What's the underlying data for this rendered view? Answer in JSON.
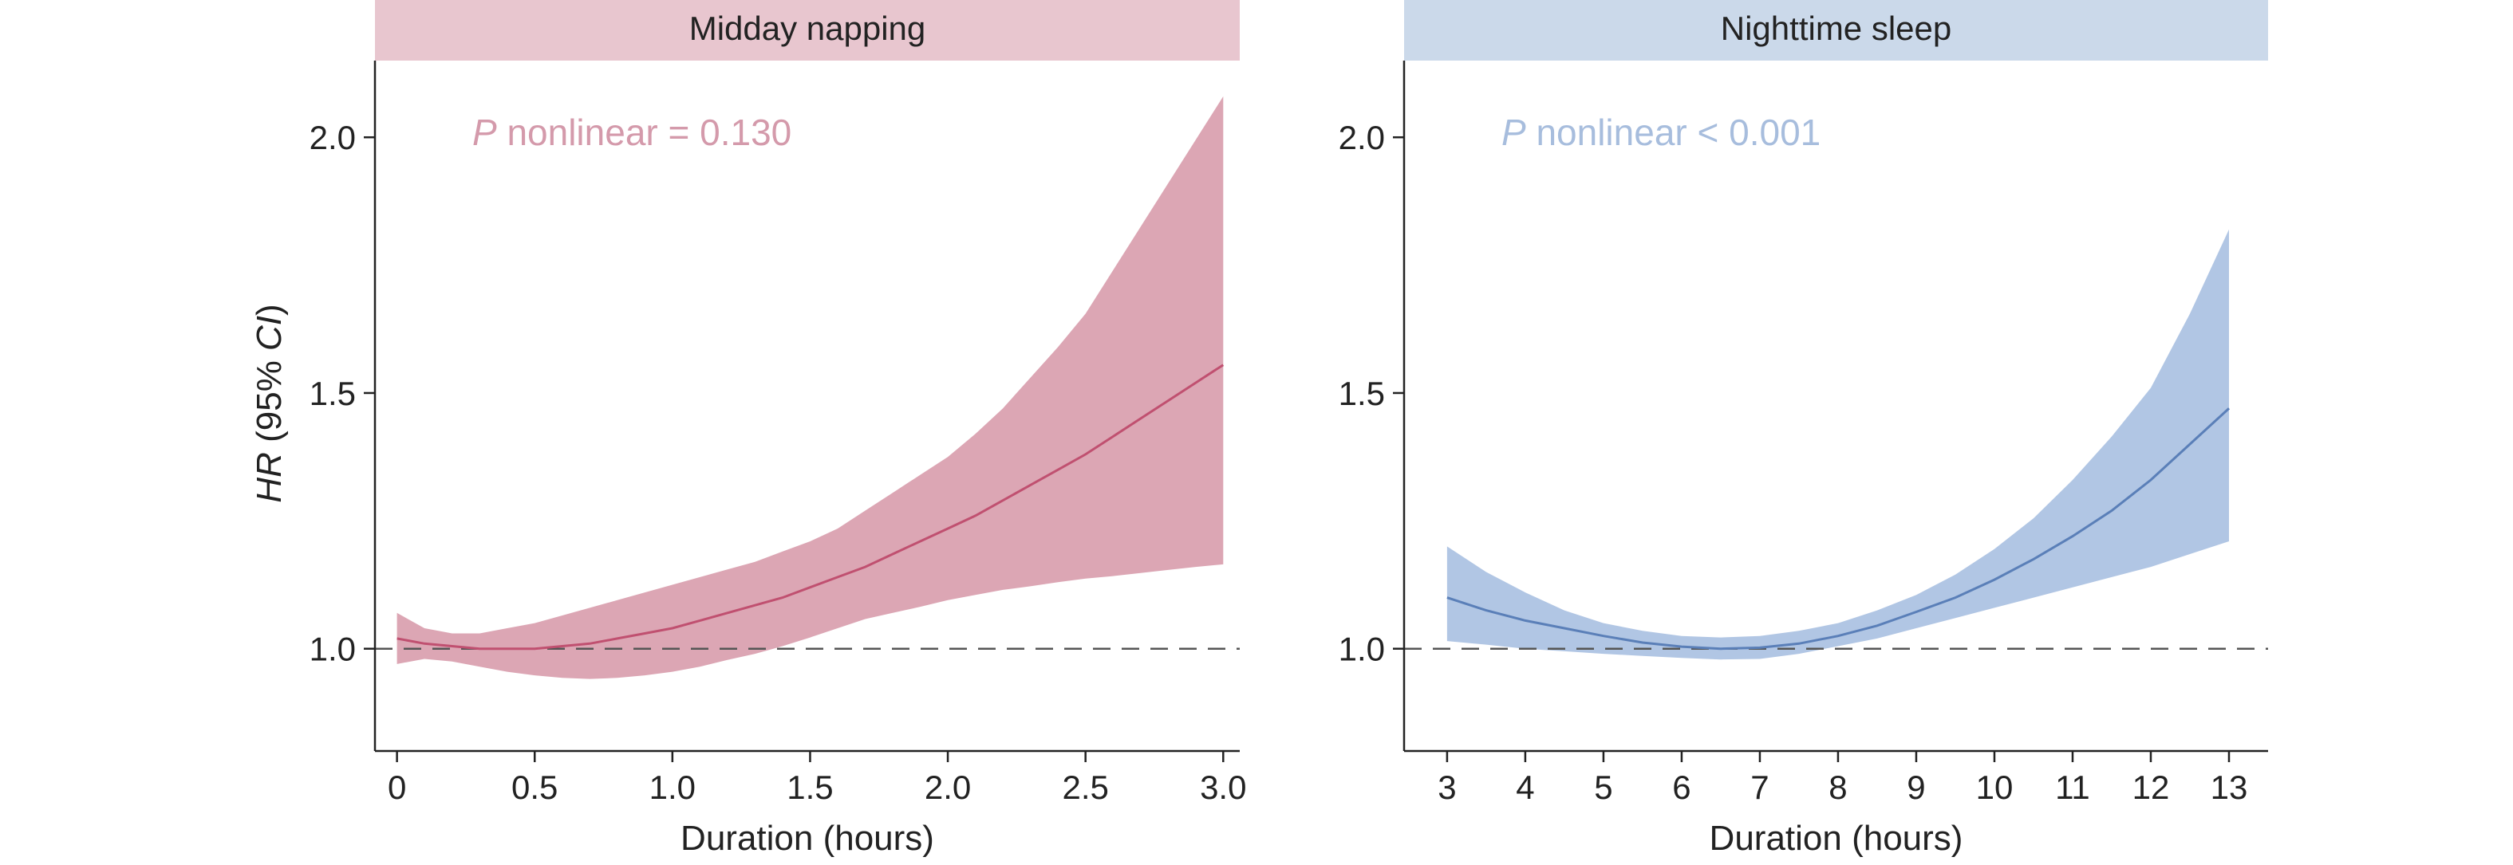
{
  "y_axis_title_prefix": "HR",
  "y_axis_title_paren_open": " (95% ",
  "y_axis_title_ci": "CI",
  "y_axis_title_paren_close": ")",
  "chart_data": [
    {
      "type": "line",
      "title": "Midday napping",
      "xlabel": "Duration (hours)",
      "ylabel": "HR (95% CI)",
      "xlim": [
        -0.08,
        3.06
      ],
      "ylim": [
        0.8,
        2.15
      ],
      "x_ticks": [
        0,
        0.5,
        1.0,
        1.5,
        2.0,
        2.5,
        3.0
      ],
      "x_tick_labels": [
        "0",
        "0.5",
        "1.0",
        "1.5",
        "2.0",
        "2.5",
        "3.0"
      ],
      "y_ticks": [
        1.0,
        1.5,
        2.0
      ],
      "y_tick_labels": [
        "1.0",
        "1.5",
        "2.0"
      ],
      "reference_line": 1.0,
      "annotation": {
        "p": "P",
        "text": " nonlinear = 0.130"
      },
      "strip_color": "#e8c6cf",
      "line_color": "#c05070",
      "band_color": "#dca6b4",
      "annotation_color": "#d49aab",
      "series": [
        {
          "x": [
            0,
            0.1,
            0.2,
            0.3,
            0.4,
            0.5,
            0.6,
            0.7,
            0.8,
            0.9,
            1.0,
            1.1,
            1.2,
            1.3,
            1.4,
            1.5,
            1.6,
            1.7,
            1.8,
            1.9,
            2.0,
            2.1,
            2.2,
            2.3,
            2.4,
            2.5,
            2.6,
            2.7,
            2.8,
            2.9,
            3.0
          ],
          "values": [
            1.02,
            1.01,
            1.005,
            1.0,
            1.0,
            1.0,
            1.005,
            1.01,
            1.02,
            1.03,
            1.04,
            1.055,
            1.07,
            1.085,
            1.1,
            1.12,
            1.14,
            1.16,
            1.185,
            1.21,
            1.235,
            1.26,
            1.29,
            1.32,
            1.35,
            1.38,
            1.415,
            1.45,
            1.485,
            1.52,
            1.555
          ],
          "ci_lower": [
            0.97,
            0.98,
            0.975,
            0.965,
            0.955,
            0.948,
            0.943,
            0.941,
            0.943,
            0.948,
            0.955,
            0.965,
            0.978,
            0.99,
            1.005,
            1.022,
            1.04,
            1.058,
            1.07,
            1.082,
            1.095,
            1.105,
            1.115,
            1.122,
            1.13,
            1.137,
            1.142,
            1.148,
            1.154,
            1.16,
            1.165
          ],
          "ci_upper": [
            1.07,
            1.04,
            1.03,
            1.03,
            1.04,
            1.05,
            1.065,
            1.08,
            1.095,
            1.11,
            1.125,
            1.14,
            1.155,
            1.17,
            1.19,
            1.21,
            1.235,
            1.27,
            1.305,
            1.34,
            1.375,
            1.42,
            1.47,
            1.53,
            1.59,
            1.655,
            1.74,
            1.825,
            1.91,
            1.995,
            2.08
          ]
        }
      ]
    },
    {
      "type": "line",
      "title": "Nighttime sleep",
      "xlabel": "Duration (hours)",
      "ylabel": "",
      "xlim": [
        2.45,
        13.5
      ],
      "ylim": [
        0.8,
        2.15
      ],
      "x_ticks": [
        3,
        4,
        5,
        6,
        7,
        8,
        9,
        10,
        11,
        12,
        13
      ],
      "x_tick_labels": [
        "3",
        "4",
        "5",
        "6",
        "7",
        "8",
        "9",
        "10",
        "11",
        "12",
        "13"
      ],
      "y_ticks": [
        1.0,
        1.5,
        2.0
      ],
      "y_tick_labels": [
        "1.0",
        "1.5",
        "2.0"
      ],
      "reference_line": 1.0,
      "annotation": {
        "p": "P",
        "text": " nonlinear < 0.001"
      },
      "strip_color": "#cbd9ea",
      "line_color": "#5a7fb8",
      "band_color": "#b1c6e4",
      "annotation_color": "#a7bddd",
      "series": [
        {
          "x": [
            3,
            3.5,
            4,
            4.5,
            5,
            5.5,
            6,
            6.5,
            7,
            7.5,
            8,
            8.5,
            9,
            9.5,
            10,
            10.5,
            11,
            11.5,
            12,
            12.5,
            13
          ],
          "values": [
            1.1,
            1.075,
            1.055,
            1.04,
            1.025,
            1.012,
            1.004,
            1.0,
            1.002,
            1.01,
            1.025,
            1.045,
            1.072,
            1.1,
            1.135,
            1.175,
            1.22,
            1.27,
            1.33,
            1.4,
            1.47
          ],
          "ci_lower": [
            1.015,
            1.008,
            1.0,
            0.995,
            0.99,
            0.986,
            0.982,
            0.979,
            0.98,
            0.99,
            1.005,
            1.02,
            1.04,
            1.06,
            1.08,
            1.1,
            1.12,
            1.14,
            1.16,
            1.185,
            1.21
          ],
          "ci_upper": [
            1.2,
            1.15,
            1.11,
            1.075,
            1.05,
            1.035,
            1.025,
            1.022,
            1.025,
            1.035,
            1.05,
            1.075,
            1.105,
            1.145,
            1.195,
            1.255,
            1.33,
            1.415,
            1.51,
            1.655,
            1.82
          ]
        }
      ]
    }
  ]
}
